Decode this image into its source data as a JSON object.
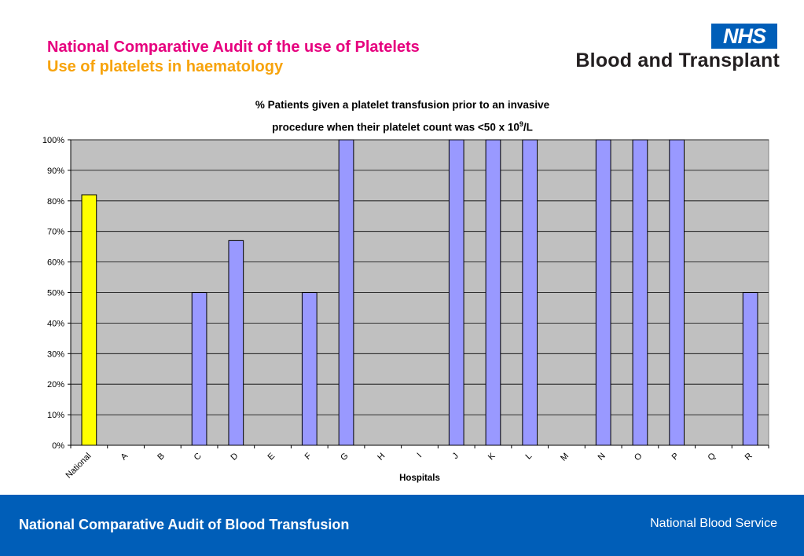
{
  "slide": {
    "title_line1": "National Comparative Audit of the use of Platelets",
    "title_line2": "Use of platelets in haematology"
  },
  "logo": {
    "badge": "NHS",
    "org_name": "Blood and Transplant"
  },
  "footer": {
    "left_text": "National Comparative Audit of Blood Transfusion",
    "right_text": "National Blood Service"
  },
  "chart_data": {
    "type": "bar",
    "title_line1": "% Patients given a platelet transfusion prior to an invasive",
    "title_line2_pre": "procedure when their platelet count was <50 x 10",
    "title_line2_sup": "9",
    "title_line2_post": "/L",
    "xlabel": "Hospitals",
    "ylabel": "",
    "categories": [
      "National",
      "A",
      "B",
      "C",
      "D",
      "E",
      "F",
      "G",
      "H",
      "I",
      "J",
      "K",
      "L",
      "M",
      "N",
      "O",
      "P",
      "Q",
      "R"
    ],
    "values": [
      82,
      0,
      0,
      50,
      67,
      0,
      50,
      100,
      0,
      0,
      100,
      100,
      100,
      0,
      100,
      100,
      100,
      0,
      50
    ],
    "ylim": [
      0,
      100
    ],
    "yticks": [
      "0%",
      "10%",
      "20%",
      "30%",
      "40%",
      "50%",
      "60%",
      "70%",
      "80%",
      "90%",
      "100%"
    ],
    "grid": true,
    "colors": {
      "highlight": "#ffff00",
      "bar": "#9999ff",
      "plot_bg": "#c0c0c0",
      "grid": "#000000"
    },
    "highlight_index": 0
  }
}
